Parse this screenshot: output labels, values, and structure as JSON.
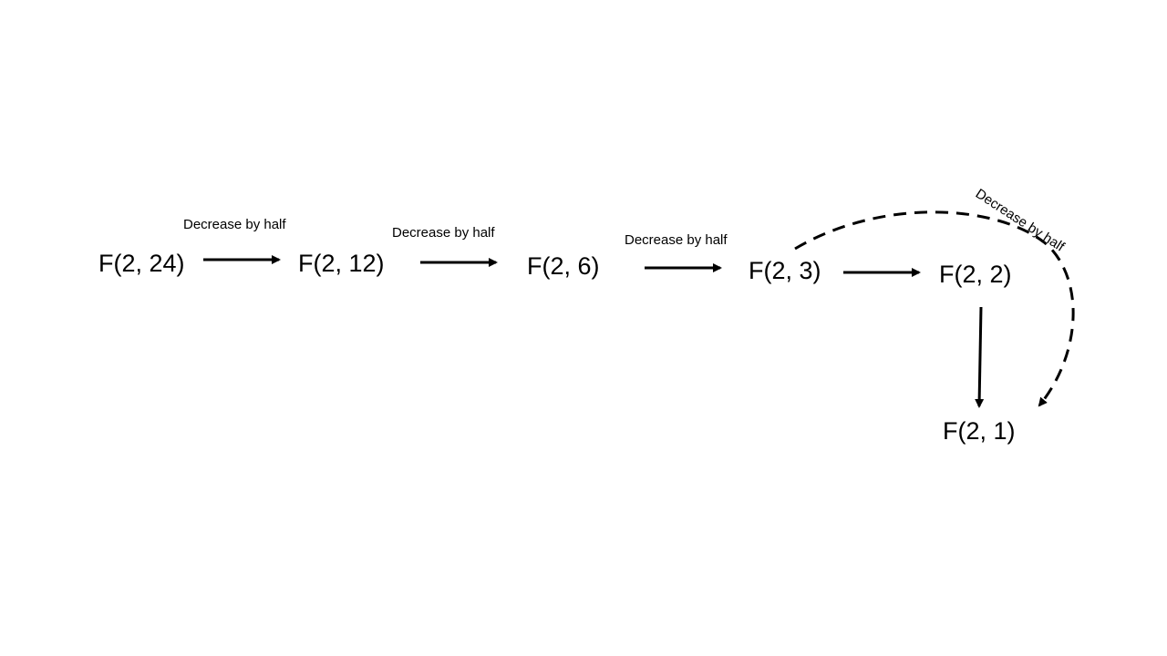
{
  "diagram": {
    "colors": {
      "background": "#ffffff",
      "stroke": "#000000",
      "text": "#000000"
    },
    "nodes": [
      {
        "id": "n24",
        "label": "F(2, 24)"
      },
      {
        "id": "n12",
        "label": "F(2, 12)"
      },
      {
        "id": "n6",
        "label": "F(2, 6)"
      },
      {
        "id": "n3",
        "label": "F(2, 3)"
      },
      {
        "id": "n2",
        "label": "F(2, 2)"
      },
      {
        "id": "n1",
        "label": "F(2, 1)"
      }
    ],
    "edges": [
      {
        "from": "n24",
        "to": "n12",
        "label": "Decrease by half",
        "style": "solid"
      },
      {
        "from": "n12",
        "to": "n6",
        "label": "Decrease by half",
        "style": "solid"
      },
      {
        "from": "n6",
        "to": "n3",
        "label": "Decrease by half",
        "style": "solid"
      },
      {
        "from": "n3",
        "to": "n2",
        "label": "",
        "style": "solid"
      },
      {
        "from": "n2",
        "to": "n1",
        "label": "",
        "style": "solid"
      },
      {
        "from": "n3",
        "to": "n1",
        "label": "Decrease by half",
        "style": "dashed"
      }
    ]
  }
}
